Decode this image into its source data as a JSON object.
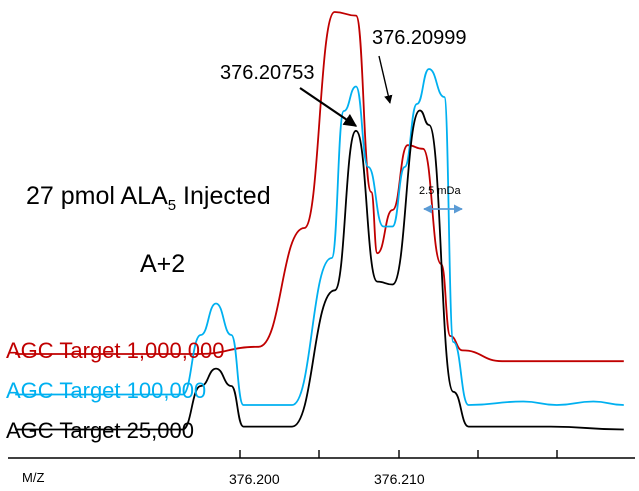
{
  "chart_data": {
    "type": "line",
    "title_main": "27 pmol ALA",
    "title_sub": "5",
    "title_tail": " Injected",
    "isotope_label": "A+2",
    "xlabel": "M/Z",
    "x_ticks": [
      "376.200",
      "376.210"
    ],
    "xlim": [
      376.1955,
      376.2165
    ],
    "peak_labels": [
      "376.20753",
      "376.20999"
    ],
    "delta_label": "2.5 mDa",
    "series": [
      {
        "name": "AGC Target 1,000,000",
        "color": "#c00000",
        "x": [
          376.196,
          376.202,
          376.204,
          376.2055,
          376.2065,
          376.2072,
          376.2077,
          376.2079,
          376.2084,
          376.2089,
          376.2094,
          376.21,
          376.2103,
          376.2107,
          376.212,
          376.216
        ],
        "y": [
          0.05,
          0.05,
          0.07,
          0.4,
          1.0,
          0.99,
          0.5,
          0.33,
          0.45,
          0.63,
          0.62,
          0.3,
          0.1,
          0.06,
          0.03,
          0.03
        ]
      },
      {
        "name": "AGC Target 100,000",
        "color": "#00b0f0",
        "x": [
          376.196,
          376.2015,
          376.2021,
          376.2026,
          376.2031,
          376.2035,
          376.2051,
          376.2064,
          376.2068,
          376.2072,
          376.2076,
          376.2081,
          376.2084,
          376.2088,
          376.2092,
          376.2096,
          376.2101,
          376.2104,
          376.2109,
          376.2127,
          376.2138,
          376.215,
          376.216
        ],
        "y": [
          0.05,
          0.05,
          0.22,
          0.31,
          0.22,
          0.02,
          0.02,
          0.44,
          0.86,
          0.93,
          0.7,
          0.53,
          0.53,
          0.7,
          0.88,
          0.98,
          0.9,
          0.2,
          0.02,
          0.03,
          0.02,
          0.03,
          0.02
        ]
      },
      {
        "name": "AGC Target 25,000",
        "color": "#000000",
        "x": [
          376.196,
          376.2015,
          376.2021,
          376.2026,
          376.2031,
          376.2035,
          376.2051,
          376.2065,
          376.2072,
          376.2079,
          376.2084,
          376.2093,
          376.2096,
          376.2104,
          376.2109,
          376.212,
          376.2136,
          376.216
        ],
        "y": [
          0.05,
          0.05,
          0.2,
          0.26,
          0.2,
          0.06,
          0.06,
          0.53,
          1.08,
          0.56,
          0.55,
          1.15,
          1.1,
          0.18,
          0.06,
          0.06,
          0.06,
          0.05
        ]
      }
    ]
  }
}
